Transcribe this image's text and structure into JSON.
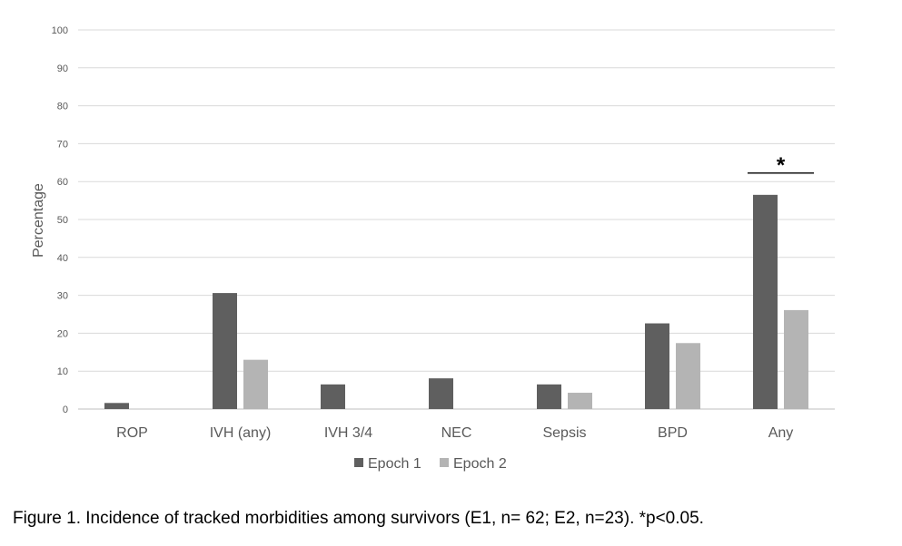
{
  "caption": "Figure 1. Incidence of tracked morbidities among survivors (E1, n= 62; E2, n=23). *p<0.05.",
  "chart_data": {
    "type": "bar",
    "categories": [
      "ROP",
      "IVH (any)",
      "IVH 3/4",
      "NEC",
      "Sepsis",
      "BPD",
      "Any"
    ],
    "series": [
      {
        "name": "Epoch 1",
        "color": "#5f5f5f",
        "values": [
          1.6,
          30.6,
          6.5,
          8.1,
          6.5,
          22.6,
          56.5
        ]
      },
      {
        "name": "Epoch 2",
        "color": "#b4b4b4",
        "values": [
          0,
          13.0,
          0,
          0,
          4.3,
          17.4,
          26.1
        ]
      }
    ],
    "ylabel": "Percentage",
    "xlabel": "",
    "ylim": [
      0,
      100
    ],
    "yticks": [
      0,
      10,
      20,
      30,
      40,
      50,
      60,
      70,
      80,
      90,
      100
    ],
    "grid": true,
    "legend_position": "bottom",
    "significance": {
      "category": "Any",
      "marker": "*"
    }
  }
}
